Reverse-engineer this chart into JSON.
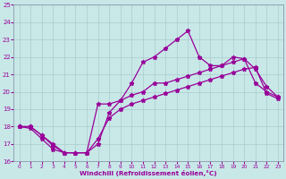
{
  "xlabel": "Windchill (Refroidissement éolien,°C)",
  "xlim": [
    -0.5,
    23.5
  ],
  "ylim": [
    16,
    25
  ],
  "xticks": [
    0,
    1,
    2,
    3,
    4,
    5,
    6,
    7,
    8,
    9,
    10,
    11,
    12,
    13,
    14,
    15,
    16,
    17,
    18,
    19,
    20,
    21,
    22,
    23
  ],
  "yticks": [
    16,
    17,
    18,
    19,
    20,
    21,
    22,
    23,
    24,
    25
  ],
  "bg_color": "#c8e8e8",
  "line_color": "#990099",
  "line1_x": [
    0,
    1,
    2,
    3,
    4,
    5,
    6,
    7,
    8,
    9,
    10,
    11,
    12,
    13,
    14,
    15,
    16,
    17,
    18,
    19,
    20,
    21,
    22,
    23
  ],
  "line1_y": [
    18.0,
    18.0,
    17.5,
    17.0,
    16.5,
    16.5,
    16.5,
    19.3,
    19.3,
    19.5,
    20.5,
    21.7,
    22.0,
    22.5,
    23.0,
    23.5,
    22.0,
    21.5,
    21.5,
    22.0,
    21.9,
    20.5,
    20.0,
    19.7
  ],
  "line2_x": [
    0,
    1,
    2,
    3,
    4,
    5,
    6,
    7,
    8,
    9,
    10,
    11,
    12,
    13,
    14,
    15,
    16,
    17,
    18,
    19,
    20,
    21,
    22,
    23
  ],
  "line2_y": [
    18.0,
    18.0,
    17.5,
    16.9,
    16.5,
    16.5,
    16.5,
    17.0,
    18.8,
    19.5,
    19.8,
    20.0,
    20.5,
    20.5,
    20.7,
    20.9,
    21.1,
    21.3,
    21.5,
    21.7,
    21.9,
    21.3,
    20.3,
    19.7
  ],
  "line3_x": [
    0,
    1,
    2,
    3,
    4,
    5,
    6,
    7,
    8,
    9,
    10,
    11,
    12,
    13,
    14,
    15,
    16,
    17,
    18,
    19,
    20,
    21,
    22,
    23
  ],
  "line3_y": [
    18.0,
    17.9,
    17.3,
    16.7,
    16.5,
    16.5,
    16.5,
    17.3,
    18.5,
    19.0,
    19.3,
    19.5,
    19.7,
    19.9,
    20.1,
    20.3,
    20.5,
    20.7,
    20.9,
    21.1,
    21.3,
    21.4,
    19.9,
    19.6
  ]
}
